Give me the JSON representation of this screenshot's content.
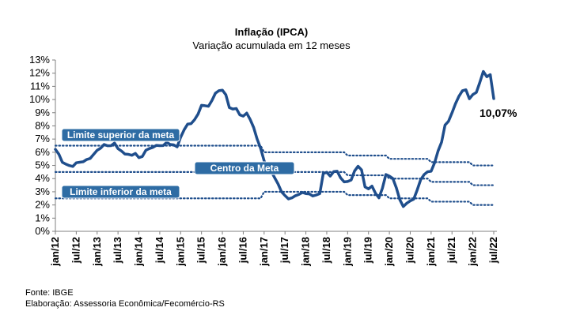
{
  "chart_data": {
    "type": "line",
    "title": "Inflação (IPCA)",
    "subtitle": "Variação acumulada em 12 meses",
    "ylim": [
      0,
      13
    ],
    "y_ticks": [
      0,
      1,
      2,
      3,
      4,
      5,
      6,
      7,
      8,
      9,
      10,
      11,
      12,
      13
    ],
    "y_tick_suffix": "%",
    "x_ticks": [
      "jan/12",
      "jul/12",
      "jan/13",
      "jul/13",
      "jan/14",
      "jul/14",
      "jan/15",
      "jul/15",
      "jan/16",
      "jul/16",
      "jan/17",
      "jul/17",
      "jan/18",
      "jul/18",
      "jan/19",
      "jul/19",
      "jan/20",
      "jul/20",
      "jan/21",
      "jul/21",
      "jan/22",
      "jul/22"
    ],
    "grid": false,
    "series": [
      {
        "values": [
          6.22,
          5.85,
          5.24,
          5.1,
          4.99,
          4.92,
          5.2,
          5.24,
          5.28,
          5.45,
          5.53,
          5.84,
          6.15,
          6.31,
          6.59,
          6.49,
          6.5,
          6.7,
          6.27,
          6.09,
          5.86,
          5.84,
          5.77,
          5.91,
          5.59,
          5.68,
          6.15,
          6.28,
          6.37,
          6.52,
          6.5,
          6.51,
          6.75,
          6.59,
          6.56,
          6.41,
          7.14,
          7.7,
          8.13,
          8.17,
          8.47,
          8.89,
          9.56,
          9.53,
          9.49,
          9.93,
          10.48,
          10.67,
          10.71,
          10.36,
          9.39,
          9.28,
          9.32,
          8.84,
          8.74,
          8.97,
          8.48,
          7.87,
          6.99,
          6.29,
          5.35,
          4.76,
          4.57,
          4.08,
          3.6,
          3.0,
          2.71,
          2.46,
          2.54,
          2.7,
          2.8,
          2.95,
          2.86,
          2.84,
          2.68,
          2.76,
          2.86,
          4.39,
          4.48,
          4.19,
          4.53,
          4.56,
          4.05,
          3.75,
          3.78,
          3.89,
          4.58,
          4.94,
          4.66,
          3.37,
          3.22,
          3.43,
          2.89,
          2.54,
          3.27,
          4.31,
          4.19,
          4.01,
          3.3,
          2.4,
          1.88,
          2.13,
          2.31,
          2.44,
          3.14,
          3.92,
          4.31,
          4.52,
          4.56,
          5.2,
          6.1,
          6.76,
          8.06,
          8.35,
          8.99,
          9.68,
          10.25,
          10.67,
          10.74,
          10.06,
          10.38,
          10.54,
          11.3,
          12.13,
          11.73,
          11.89,
          10.07
        ],
        "color": "#1f4e8c"
      },
      {
        "name": "Limite superior da meta",
        "values": [
          6.5,
          6.5,
          6.5,
          6.5,
          6.5,
          6.5,
          6.5,
          6.5,
          6.5,
          6.5,
          6.5,
          6.5,
          6.5,
          6.5,
          6.5,
          6.5,
          6.5,
          6.5,
          6.5,
          6.5,
          6.5,
          6.5,
          6.5,
          6.5,
          6.5,
          6.5,
          6.5,
          6.5,
          6.5,
          6.5,
          6.5,
          6.5,
          6.5,
          6.5,
          6.5,
          6.5,
          6.5,
          6.5,
          6.5,
          6.5,
          6.5,
          6.5,
          6.5,
          6.5,
          6.5,
          6.5,
          6.5,
          6.5,
          6.5,
          6.5,
          6.5,
          6.5,
          6.5,
          6.5,
          6.5,
          6.5,
          6.5,
          6.5,
          6.5,
          6.5,
          6.0,
          6.0,
          6.0,
          6.0,
          6.0,
          6.0,
          6.0,
          6.0,
          6.0,
          6.0,
          6.0,
          6.0,
          6.0,
          6.0,
          6.0,
          6.0,
          6.0,
          6.0,
          6.0,
          6.0,
          6.0,
          6.0,
          6.0,
          6.0,
          5.75,
          5.75,
          5.75,
          5.75,
          5.75,
          5.75,
          5.75,
          5.75,
          5.75,
          5.75,
          5.75,
          5.75,
          5.5,
          5.5,
          5.5,
          5.5,
          5.5,
          5.5,
          5.5,
          5.5,
          5.5,
          5.5,
          5.5,
          5.5,
          5.25,
          5.25,
          5.25,
          5.25,
          5.25,
          5.25,
          5.25,
          5.25,
          5.25,
          5.25,
          5.25,
          5.25,
          5.0,
          5.0,
          5.0,
          5.0,
          5.0,
          5.0,
          5.0
        ],
        "color": "#1f4e8c",
        "style": "dotted"
      },
      {
        "name": "Centro da Meta",
        "values": [
          4.5,
          4.5,
          4.5,
          4.5,
          4.5,
          4.5,
          4.5,
          4.5,
          4.5,
          4.5,
          4.5,
          4.5,
          4.5,
          4.5,
          4.5,
          4.5,
          4.5,
          4.5,
          4.5,
          4.5,
          4.5,
          4.5,
          4.5,
          4.5,
          4.5,
          4.5,
          4.5,
          4.5,
          4.5,
          4.5,
          4.5,
          4.5,
          4.5,
          4.5,
          4.5,
          4.5,
          4.5,
          4.5,
          4.5,
          4.5,
          4.5,
          4.5,
          4.5,
          4.5,
          4.5,
          4.5,
          4.5,
          4.5,
          4.5,
          4.5,
          4.5,
          4.5,
          4.5,
          4.5,
          4.5,
          4.5,
          4.5,
          4.5,
          4.5,
          4.5,
          4.5,
          4.5,
          4.5,
          4.5,
          4.5,
          4.5,
          4.5,
          4.5,
          4.5,
          4.5,
          4.5,
          4.5,
          4.5,
          4.5,
          4.5,
          4.5,
          4.5,
          4.5,
          4.5,
          4.5,
          4.5,
          4.5,
          4.5,
          4.5,
          4.25,
          4.25,
          4.25,
          4.25,
          4.25,
          4.25,
          4.25,
          4.25,
          4.25,
          4.25,
          4.25,
          4.25,
          4.0,
          4.0,
          4.0,
          4.0,
          4.0,
          4.0,
          4.0,
          4.0,
          4.0,
          4.0,
          4.0,
          4.0,
          3.75,
          3.75,
          3.75,
          3.75,
          3.75,
          3.75,
          3.75,
          3.75,
          3.75,
          3.75,
          3.75,
          3.75,
          3.5,
          3.5,
          3.5,
          3.5,
          3.5,
          3.5,
          3.5
        ],
        "color": "#1f4e8c",
        "style": "dotted"
      },
      {
        "name": "Limite inferior da meta",
        "values": [
          2.5,
          2.5,
          2.5,
          2.5,
          2.5,
          2.5,
          2.5,
          2.5,
          2.5,
          2.5,
          2.5,
          2.5,
          2.5,
          2.5,
          2.5,
          2.5,
          2.5,
          2.5,
          2.5,
          2.5,
          2.5,
          2.5,
          2.5,
          2.5,
          2.5,
          2.5,
          2.5,
          2.5,
          2.5,
          2.5,
          2.5,
          2.5,
          2.5,
          2.5,
          2.5,
          2.5,
          2.5,
          2.5,
          2.5,
          2.5,
          2.5,
          2.5,
          2.5,
          2.5,
          2.5,
          2.5,
          2.5,
          2.5,
          2.5,
          2.5,
          2.5,
          2.5,
          2.5,
          2.5,
          2.5,
          2.5,
          2.5,
          2.5,
          2.5,
          2.5,
          3.0,
          3.0,
          3.0,
          3.0,
          3.0,
          3.0,
          3.0,
          3.0,
          3.0,
          3.0,
          3.0,
          3.0,
          3.0,
          3.0,
          3.0,
          3.0,
          3.0,
          3.0,
          3.0,
          3.0,
          3.0,
          3.0,
          3.0,
          3.0,
          2.75,
          2.75,
          2.75,
          2.75,
          2.75,
          2.75,
          2.75,
          2.75,
          2.75,
          2.75,
          2.75,
          2.75,
          2.5,
          2.5,
          2.5,
          2.5,
          2.5,
          2.5,
          2.5,
          2.5,
          2.5,
          2.5,
          2.5,
          2.5,
          2.25,
          2.25,
          2.25,
          2.25,
          2.25,
          2.25,
          2.25,
          2.25,
          2.25,
          2.25,
          2.25,
          2.25,
          2.0,
          2.0,
          2.0,
          2.0,
          2.0,
          2.0,
          2.0
        ],
        "color": "#1f4e8c",
        "style": "dotted"
      }
    ],
    "last_value_label": "10,07%",
    "reference_labels": [
      "Limite superior da meta",
      "Centro da Meta",
      "Limite inferior da meta"
    ]
  },
  "footer": {
    "source": "Fonte: IBGE",
    "credit": "Elaboração: Assessoria Econômica/Fecomércio-RS"
  }
}
